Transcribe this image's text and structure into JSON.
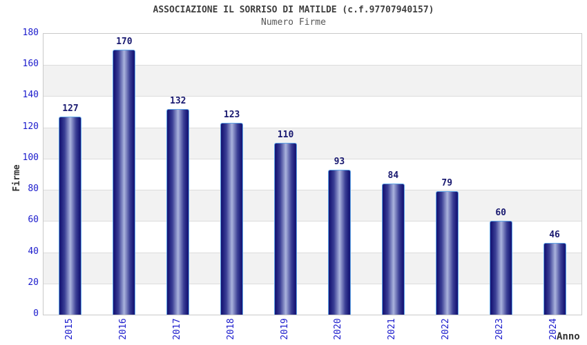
{
  "chart_data": {
    "type": "bar",
    "title": "ASSOCIAZIONE IL SORRISO DI MATILDE (c.f.97707940157)",
    "subtitle": "Numero Firme",
    "xlabel": "Anno",
    "ylabel": "Firme",
    "categories": [
      "2015",
      "2016",
      "2017",
      "2018",
      "2019",
      "2020",
      "2021",
      "2022",
      "2023",
      "2024"
    ],
    "values": [
      127,
      170,
      132,
      123,
      110,
      93,
      84,
      79,
      60,
      46
    ],
    "ylim": [
      0,
      180
    ],
    "ytick_step": 20,
    "grid": "horizontal-bands",
    "legend": "none",
    "colors": {
      "bar_dark": "#191978",
      "bar_mid": "#3c4096",
      "bar_light": "#aab3dd",
      "bar_border": "#5fa5e7",
      "value_label": "#191970",
      "tick_label": "#1a1acc",
      "axis_title": "#333333",
      "title": "#3f3f3f",
      "subtitle": "#555555",
      "band": "#f2f2f2",
      "gridline": "#dcdcdc",
      "plot_border": "#c9c9c9"
    }
  }
}
